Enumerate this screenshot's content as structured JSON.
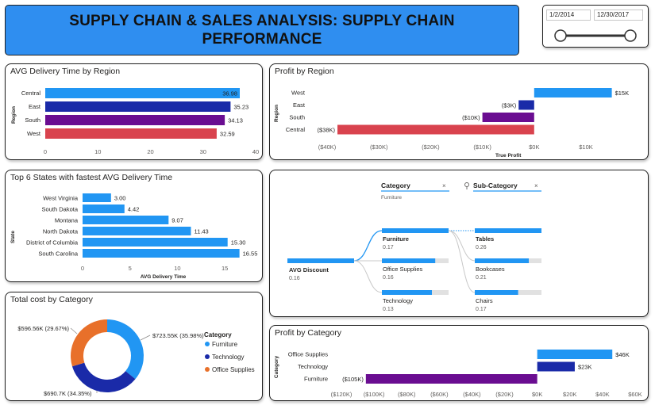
{
  "header": {
    "title": "SUPPLY CHAIN & SALES ANALYSIS: SUPPLY CHAIN PERFORMANCE"
  },
  "date_slicer": {
    "start": "1/2/2014",
    "end": "12/30/2017"
  },
  "colors": {
    "blue": "#2196f3",
    "navy": "#1a2aa8",
    "purple": "#6a0d91",
    "red": "#d9434e",
    "orange": "#e8702a",
    "banner": "#2f8ef0"
  },
  "delivery_region": {
    "title": "AVG Delivery Time by Region",
    "ylabel": "Region",
    "categories": [
      "Central",
      "East",
      "South",
      "West"
    ],
    "values": [
      36.98,
      35.23,
      34.13,
      32.59
    ],
    "labels": [
      "36.98",
      "35.23",
      "34.13",
      "32.59"
    ],
    "ticks": [
      "0",
      "10",
      "20",
      "30",
      "40"
    ]
  },
  "profit_region": {
    "title": "Profit by Region",
    "ylabel": "Region",
    "xlabel": "True Profit",
    "categories": [
      "West",
      "East",
      "South",
      "Central"
    ],
    "values": [
      15,
      -3,
      -10,
      -38
    ],
    "labels": [
      "$15K",
      "($3K)",
      "($10K)",
      "($38K)"
    ],
    "ticks": [
      "($40K)",
      "($30K)",
      "($20K)",
      "($10K)",
      "$0K",
      "$10K"
    ]
  },
  "top_states": {
    "title": "Top 6 States with fastest AVG Delivery Time",
    "ylabel": "State",
    "xlabel": "AVG Delivery Time",
    "categories": [
      "West Virginia",
      "South Dakota",
      "Montana",
      "North Dakota",
      "District of Columbia",
      "South Carolina"
    ],
    "values": [
      3.0,
      4.42,
      9.07,
      11.43,
      15.3,
      16.55
    ],
    "labels": [
      "3.00",
      "4.42",
      "9.07",
      "11.43",
      "15.30",
      "16.55"
    ],
    "ticks": [
      "0",
      "5",
      "10",
      "15"
    ]
  },
  "decomp_tree": {
    "category_header": "Category",
    "category_filter": "Furniture",
    "subcategory_header": "Sub-Category",
    "root": {
      "label": "AVG Discount",
      "value": "0.16"
    },
    "level1": [
      {
        "label": "Furniture",
        "value": "0.17",
        "fill": 1.0
      },
      {
        "label": "Office Supplies",
        "value": "0.16",
        "fill": 0.8
      },
      {
        "label": "Technology",
        "value": "0.13",
        "fill": 0.75
      }
    ],
    "level2": [
      {
        "label": "Tables",
        "value": "0.26",
        "fill": 1.0
      },
      {
        "label": "Bookcases",
        "value": "0.21",
        "fill": 0.81
      },
      {
        "label": "Chairs",
        "value": "0.17",
        "fill": 0.65
      }
    ]
  },
  "cost_category": {
    "title": "Total cost by Category",
    "legend_title": "Category",
    "slices": [
      {
        "name": "Furniture",
        "value": 723.55,
        "label": "$723.55K (35.98%)",
        "color": "#2196f3"
      },
      {
        "name": "Technology",
        "value": 690.7,
        "label": "$690.7K (34.35%)",
        "color": "#1a2aa8"
      },
      {
        "name": "Office Supplies",
        "value": 596.56,
        "label": "$596.56K (29.67%)",
        "color": "#e8702a"
      }
    ]
  },
  "profit_category": {
    "title": "Profit by Category",
    "ylabel": "Category",
    "categories": [
      "Office Supplies",
      "Technology",
      "Furniture"
    ],
    "values": [
      46,
      23,
      -105
    ],
    "labels": [
      "$46K",
      "$23K",
      "($105K)"
    ],
    "ticks": [
      "($120K)",
      "($100K)",
      "($80K)",
      "($60K)",
      "($40K)",
      "($20K)",
      "$0K",
      "$20K",
      "$40K",
      "$60K"
    ]
  },
  "chart_data": [
    {
      "type": "bar",
      "title": "AVG Delivery Time by Region",
      "ylabel": "Region",
      "categories": [
        "Central",
        "East",
        "South",
        "West"
      ],
      "values": [
        36.98,
        35.23,
        34.13,
        32.59
      ],
      "xlim": [
        0,
        40
      ]
    },
    {
      "type": "bar",
      "title": "Profit by Region",
      "ylabel": "Region",
      "xlabel": "True Profit",
      "categories": [
        "West",
        "East",
        "South",
        "Central"
      ],
      "values": [
        15,
        -3,
        -10,
        -38
      ],
      "xlim": [
        -40,
        15
      ]
    },
    {
      "type": "bar",
      "title": "Top 6 States with fastest AVG Delivery Time",
      "ylabel": "State",
      "xlabel": "AVG Delivery Time",
      "categories": [
        "West Virginia",
        "South Dakota",
        "Montana",
        "North Dakota",
        "District of Columbia",
        "South Carolina"
      ],
      "values": [
        3.0,
        4.42,
        9.07,
        11.43,
        15.3,
        16.55
      ],
      "xlim": [
        0,
        17
      ]
    },
    {
      "type": "pie",
      "title": "Total cost by Category",
      "categories": [
        "Furniture",
        "Technology",
        "Office Supplies"
      ],
      "values": [
        723.55,
        690.7,
        596.56
      ],
      "legend": "right"
    },
    {
      "type": "bar",
      "title": "Profit by Category",
      "ylabel": "Category",
      "categories": [
        "Office Supplies",
        "Technology",
        "Furniture"
      ],
      "values": [
        46,
        23,
        -105
      ],
      "xlim": [
        -120,
        60
      ]
    }
  ]
}
